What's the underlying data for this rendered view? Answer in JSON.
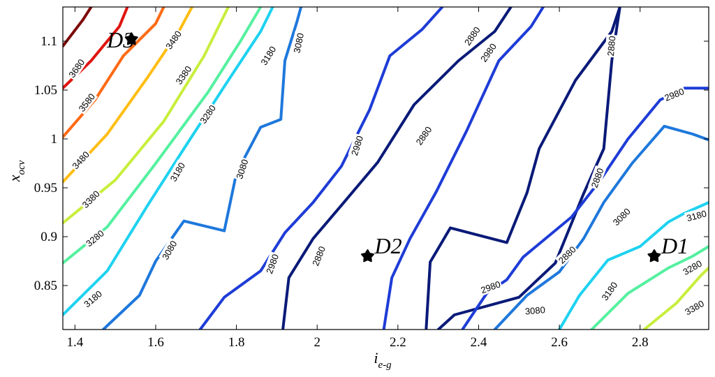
{
  "chart_data": {
    "type": "contour",
    "title": "",
    "xlabel": {
      "main": "i",
      "sub": "e-g"
    },
    "ylabel": {
      "main": "x",
      "sub": "ocv"
    },
    "xlim": [
      1.37,
      2.97
    ],
    "ylim": [
      0.805,
      1.135
    ],
    "xticks": [
      {
        "value": 1.4,
        "label": "1.4"
      },
      {
        "value": 1.6,
        "label": "1.6"
      },
      {
        "value": 1.8,
        "label": "1.8"
      },
      {
        "value": 2.0,
        "label": "2"
      },
      {
        "value": 2.2,
        "label": "2.2"
      },
      {
        "value": 2.4,
        "label": "2.4"
      },
      {
        "value": 2.6,
        "label": "2.6"
      },
      {
        "value": 2.8,
        "label": "2.8"
      }
    ],
    "yticks": [
      {
        "value": 0.85,
        "label": "0.85"
      },
      {
        "value": 0.9,
        "label": "0.9"
      },
      {
        "value": 0.95,
        "label": "0.95"
      },
      {
        "value": 1.0,
        "label": "1"
      },
      {
        "value": 1.05,
        "label": "1.05"
      },
      {
        "value": 1.1,
        "label": "1.1"
      }
    ],
    "contours": [
      {
        "level": "3680",
        "color": "#7d0a0a",
        "points": [
          [
            1.37,
            1.095
          ],
          [
            1.42,
            1.122
          ],
          [
            1.44,
            1.135
          ]
        ],
        "labels": [
          {
            "text": "3680",
            "x": 1.405,
            "y": 1.072,
            "angle": -55
          }
        ]
      },
      {
        "level": "3580",
        "color": "#e0140f",
        "points": [
          [
            1.37,
            1.052
          ],
          [
            1.44,
            1.08
          ],
          [
            1.51,
            1.115
          ],
          [
            1.53,
            1.135
          ]
        ],
        "labels": [
          {
            "text": "3580",
            "x": 1.43,
            "y": 1.037,
            "angle": -52
          }
        ]
      },
      {
        "level": "3480",
        "color": "#ff6a14",
        "points": [
          [
            1.37,
            1.002
          ],
          [
            1.45,
            1.04
          ],
          [
            1.52,
            1.085
          ],
          [
            1.6,
            1.118
          ],
          [
            1.62,
            1.135
          ]
        ],
        "labels": [
          {
            "text": "3480",
            "x": 1.415,
            "y": 0.978,
            "angle": -48
          },
          {
            "text": "3480",
            "x": 1.645,
            "y": 1.101,
            "angle": -55
          }
        ]
      },
      {
        "level": "3380",
        "color": "#ffbe14",
        "points": [
          [
            1.37,
            0.956
          ],
          [
            1.48,
            1.005
          ],
          [
            1.58,
            1.063
          ],
          [
            1.66,
            1.112
          ],
          [
            1.69,
            1.135
          ]
        ],
        "labels": [
          {
            "text": "3380",
            "x": 1.44,
            "y": 0.938,
            "angle": -45
          },
          {
            "text": "3380",
            "x": 1.67,
            "y": 1.065,
            "angle": -55
          }
        ]
      },
      {
        "level": "3280",
        "color": "#c8ee3c",
        "points": [
          [
            1.37,
            0.914
          ],
          [
            1.5,
            0.958
          ],
          [
            1.62,
            1.018
          ],
          [
            1.72,
            1.085
          ],
          [
            1.78,
            1.135
          ]
        ],
        "labels": [
          {
            "text": "3280",
            "x": 1.45,
            "y": 0.898,
            "angle": -40
          },
          {
            "text": "3280",
            "x": 1.73,
            "y": 1.025,
            "angle": -55
          }
        ]
      },
      {
        "level": "3180-left",
        "color": "#55f0a0",
        "points": [
          [
            1.37,
            0.873
          ],
          [
            1.48,
            0.91
          ],
          [
            1.6,
            0.975
          ],
          [
            1.73,
            1.048
          ],
          [
            1.81,
            1.1
          ],
          [
            1.86,
            1.135
          ]
        ],
        "labels": [
          {
            "text": "3180",
            "x": 1.445,
            "y": 0.836,
            "angle": -40
          },
          {
            "text": "3180",
            "x": 1.655,
            "y": 0.966,
            "angle": -60
          },
          {
            "text": "3180",
            "x": 1.88,
            "y": 1.085,
            "angle": -58
          }
        ]
      },
      {
        "level": "3080-left",
        "color": "#1ed2f0",
        "points": [
          [
            1.37,
            0.82
          ],
          [
            1.48,
            0.865
          ],
          [
            1.58,
            0.932
          ],
          [
            1.67,
            0.99
          ],
          [
            1.78,
            1.06
          ],
          [
            1.86,
            1.11
          ],
          [
            1.89,
            1.135
          ]
        ],
        "labels": [
          {
            "text": "3080",
            "x": 1.635,
            "y": 0.886,
            "angle": -60
          }
        ]
      },
      {
        "level": "3080-left-2",
        "color": "#1e78dc",
        "points": [
          [
            1.47,
            0.805
          ],
          [
            1.56,
            0.84
          ],
          [
            1.6,
            0.875
          ],
          [
            1.67,
            0.916
          ],
          [
            1.77,
            0.906
          ],
          [
            1.8,
            0.965
          ],
          [
            1.86,
            1.012
          ],
          [
            1.91,
            1.02
          ],
          [
            1.92,
            1.08
          ],
          [
            1.95,
            1.12
          ],
          [
            1.96,
            1.135
          ]
        ],
        "labels": [
          {
            "text": "3080",
            "x": 1.815,
            "y": 0.969,
            "angle": -72
          },
          {
            "text": "3080",
            "x": 1.955,
            "y": 1.098,
            "angle": -78
          }
        ]
      },
      {
        "level": "2980-left",
        "color": "#1e3cd7",
        "points": [
          [
            1.71,
            0.805
          ],
          [
            1.77,
            0.838
          ],
          [
            1.86,
            0.865
          ],
          [
            1.92,
            0.904
          ],
          [
            1.99,
            0.935
          ],
          [
            2.06,
            0.972
          ],
          [
            2.13,
            1.03
          ],
          [
            2.18,
            1.085
          ],
          [
            2.26,
            1.112
          ],
          [
            2.31,
            1.135
          ]
        ],
        "labels": [
          {
            "text": "2980",
            "x": 1.89,
            "y": 0.872,
            "angle": -70
          },
          {
            "text": "2980",
            "x": 2.1,
            "y": 0.993,
            "angle": -72
          }
        ]
      },
      {
        "level": "2880-left",
        "color": "#0a1a78",
        "points": [
          [
            1.915,
            0.805
          ],
          [
            1.93,
            0.858
          ],
          [
            1.99,
            0.898
          ],
          [
            2.06,
            0.932
          ],
          [
            2.15,
            0.976
          ],
          [
            2.24,
            1.035
          ],
          [
            2.35,
            1.08
          ],
          [
            2.44,
            1.11
          ],
          [
            2.48,
            1.135
          ]
        ],
        "labels": [
          {
            "text": "2880",
            "x": 2.005,
            "y": 0.88,
            "angle": -68
          },
          {
            "text": "2880",
            "x": 2.265,
            "y": 1.003,
            "angle": -55
          },
          {
            "text": "2880",
            "x": 2.385,
            "y": 1.105,
            "angle": -55
          }
        ]
      },
      {
        "level": "2980-mid",
        "color": "#1e3cd7",
        "points": [
          [
            2.165,
            0.805
          ],
          [
            2.185,
            0.858
          ],
          [
            2.23,
            0.898
          ],
          [
            2.295,
            0.946
          ],
          [
            2.37,
            1.008
          ],
          [
            2.45,
            1.08
          ],
          [
            2.53,
            1.115
          ],
          [
            2.56,
            1.135
          ]
        ],
        "labels": [
          {
            "text": "2980",
            "x": 2.425,
            "y": 1.088,
            "angle": -55
          }
        ]
      },
      {
        "level": "2880-right",
        "color": "#0a1a78",
        "points": [
          [
            2.27,
            0.805
          ],
          [
            2.28,
            0.874
          ],
          [
            2.33,
            0.909
          ],
          [
            2.47,
            0.894
          ],
          [
            2.52,
            0.945
          ],
          [
            2.55,
            0.99
          ],
          [
            2.64,
            1.06
          ],
          [
            2.73,
            1.11
          ],
          [
            2.75,
            1.135
          ],
          [
            2.73,
            1.08
          ],
          [
            2.71,
            0.99
          ],
          [
            2.66,
            0.944
          ],
          [
            2.59,
            0.873
          ],
          [
            2.5,
            0.838
          ],
          [
            2.34,
            0.82
          ],
          [
            2.3,
            0.805
          ]
        ],
        "labels": [
          {
            "text": "2880",
            "x": 2.62,
            "y": 0.881,
            "angle": -45
          },
          {
            "text": "2880",
            "x": 2.695,
            "y": 0.96,
            "angle": -70
          },
          {
            "text": "2880",
            "x": 2.73,
            "y": 1.095,
            "angle": -85
          }
        ]
      },
      {
        "level": "2980-right",
        "color": "#1e3cd7",
        "points": [
          [
            2.36,
            0.805
          ],
          [
            2.42,
            0.842
          ],
          [
            2.47,
            0.856
          ],
          [
            2.51,
            0.879
          ],
          [
            2.63,
            0.92
          ],
          [
            2.7,
            0.957
          ],
          [
            2.77,
            1.0
          ],
          [
            2.85,
            1.04
          ],
          [
            2.91,
            1.052
          ],
          [
            2.97,
            1.052
          ]
        ],
        "labels": [
          {
            "text": "2980",
            "x": 2.43,
            "y": 0.848,
            "angle": -20
          },
          {
            "text": "2980",
            "x": 2.885,
            "y": 1.045,
            "angle": -22
          }
        ]
      },
      {
        "level": "3080-right",
        "color": "#1e78dc",
        "points": [
          [
            2.44,
            0.805
          ],
          [
            2.52,
            0.84
          ],
          [
            2.6,
            0.864
          ],
          [
            2.66,
            0.898
          ],
          [
            2.71,
            0.935
          ],
          [
            2.78,
            0.975
          ],
          [
            2.86,
            1.013
          ],
          [
            2.93,
            1.005
          ],
          [
            2.97,
            0.999
          ]
        ],
        "labels": [
          {
            "text": "3080",
            "x": 2.54,
            "y": 0.824,
            "angle": -5
          },
          {
            "text": "3080",
            "x": 2.755,
            "y": 0.92,
            "angle": -45
          }
        ]
      },
      {
        "level": "3180-right",
        "color": "#1ed2f0",
        "points": [
          [
            2.6,
            0.805
          ],
          [
            2.65,
            0.84
          ],
          [
            2.72,
            0.876
          ],
          [
            2.8,
            0.89
          ],
          [
            2.87,
            0.915
          ],
          [
            2.91,
            0.924
          ],
          [
            2.97,
            0.935
          ]
        ],
        "labels": [
          {
            "text": "3180",
            "x": 2.725,
            "y": 0.844,
            "angle": -55
          },
          {
            "text": "3180",
            "x": 2.94,
            "y": 0.921,
            "angle": -15
          }
        ]
      },
      {
        "level": "3280-right",
        "color": "#55f0a0",
        "points": [
          [
            2.68,
            0.805
          ],
          [
            2.77,
            0.842
          ],
          [
            2.87,
            0.868
          ],
          [
            2.93,
            0.88
          ],
          [
            2.97,
            0.89
          ]
        ],
        "labels": [
          {
            "text": "3280",
            "x": 2.93,
            "y": 0.868,
            "angle": -30
          }
        ]
      },
      {
        "level": "3380-right",
        "color": "#c8ee3c",
        "points": [
          [
            2.81,
            0.805
          ],
          [
            2.89,
            0.832
          ],
          [
            2.95,
            0.86
          ],
          [
            2.97,
            0.868
          ]
        ],
        "labels": [
          {
            "text": "3380",
            "x": 2.935,
            "y": 0.827,
            "angle": -30
          }
        ]
      }
    ],
    "annotations": [
      {
        "label": "D3",
        "x": 1.54,
        "y": 1.102
      },
      {
        "label": "D2",
        "x": 2.125,
        "y": 0.88
      },
      {
        "label": "D1",
        "x": 2.835,
        "y": 0.88
      }
    ]
  }
}
